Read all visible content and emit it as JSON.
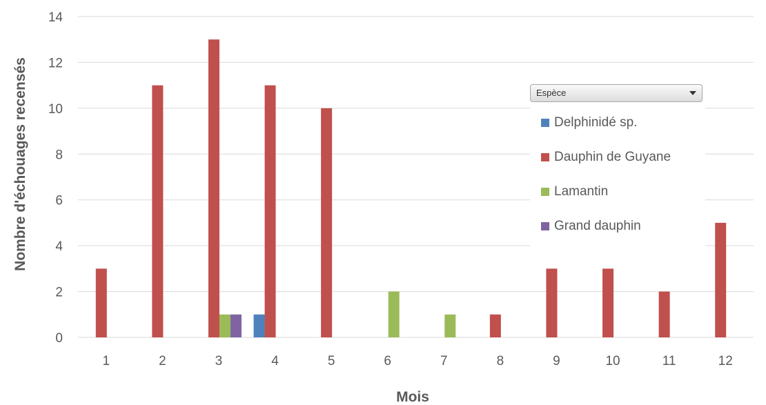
{
  "chart_data": {
    "type": "bar",
    "xlabel": "Mois",
    "ylabel": "Nombre d'échouages recensés",
    "ylim": [
      0,
      14
    ],
    "yticks": [
      0,
      2,
      4,
      6,
      8,
      10,
      12,
      14
    ],
    "grid": true,
    "legend_position": "right",
    "legend_title": "Espèce",
    "categories": [
      "1",
      "2",
      "3",
      "4",
      "5",
      "6",
      "7",
      "8",
      "9",
      "10",
      "11",
      "12"
    ],
    "series": [
      {
        "name": "Delphinidé sp.",
        "color": "#4f81bd",
        "values": [
          0,
          0,
          0,
          1,
          0,
          0,
          0,
          0,
          0,
          0,
          0,
          0
        ]
      },
      {
        "name": "Dauphin de Guyane",
        "color": "#c0504d",
        "values": [
          3,
          11,
          13,
          11,
          10,
          0,
          0,
          1,
          3,
          3,
          2,
          5
        ]
      },
      {
        "name": "Lamantin",
        "color": "#9bbb59",
        "values": [
          0,
          0,
          1,
          0,
          0,
          2,
          1,
          0,
          0,
          0,
          0,
          0
        ]
      },
      {
        "name": "Grand dauphin",
        "color": "#8064a2",
        "values": [
          0,
          0,
          1,
          0,
          0,
          0,
          0,
          0,
          0,
          0,
          0,
          0
        ]
      }
    ]
  }
}
